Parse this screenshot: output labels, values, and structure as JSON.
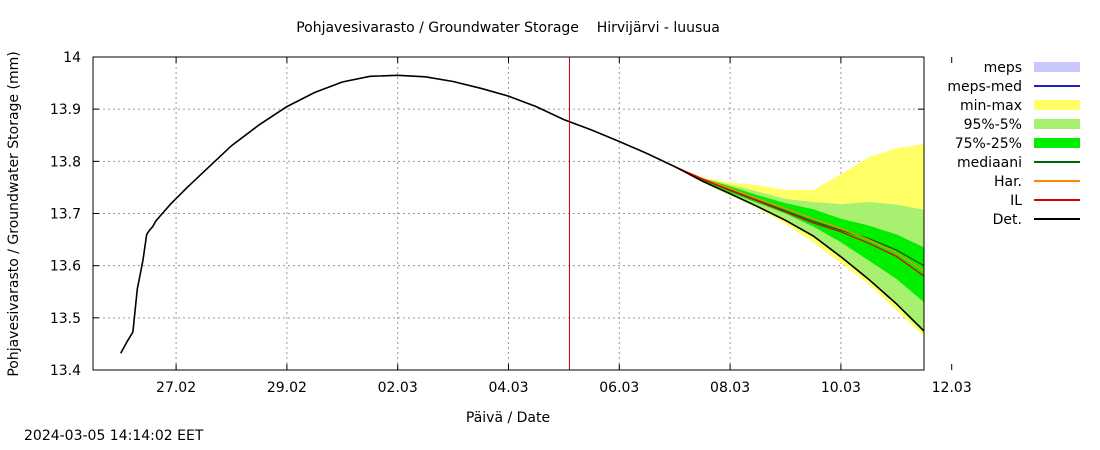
{
  "timestamp": "2024-03-05 14:14:02 EET",
  "chart_data": {
    "type": "line",
    "title": "Pohjavesivarasto / Groundwater Storage    Hirvijärvi - luusua",
    "xlabel": "Päivä / Date",
    "ylabel": "Pohjavesivarasto / Groundwater Storage (mm)",
    "x_unit": "days since 26.02 00:00",
    "xlim": [
      -0.5,
      14.5
    ],
    "ylim": [
      13.4,
      14.0
    ],
    "grid": true,
    "legend_position": "right",
    "x_ticks": [
      {
        "x": 1,
        "label": "27.02"
      },
      {
        "x": 3,
        "label": "29.02"
      },
      {
        "x": 5,
        "label": "02.03"
      },
      {
        "x": 7,
        "label": "04.03"
      },
      {
        "x": 9,
        "label": "06.03"
      },
      {
        "x": 11,
        "label": "08.03"
      },
      {
        "x": 13,
        "label": "10.03"
      },
      {
        "x": 15,
        "label": "12.03"
      }
    ],
    "y_ticks": [
      13.4,
      13.5,
      13.6,
      13.7,
      13.8,
      13.9,
      14.0
    ],
    "current_time_marker": {
      "x": 8.1,
      "color": "#c00000"
    },
    "legend": [
      {
        "label": "meps",
        "color": "#c8c8ff",
        "kind": "box"
      },
      {
        "label": "meps-med",
        "color": "#2020c0",
        "kind": "line"
      },
      {
        "label": "min-max",
        "color": "#ffff66",
        "kind": "box"
      },
      {
        "label": "95%-5%",
        "color": "#a8f070",
        "kind": "box"
      },
      {
        "label": "75%-25%",
        "color": "#00ee00",
        "kind": "box"
      },
      {
        "label": "mediaani",
        "color": "#006600",
        "kind": "line"
      },
      {
        "label": "Har.",
        "color": "#ff8800",
        "kind": "line"
      },
      {
        "label": "IL",
        "color": "#dd0000",
        "kind": "line"
      },
      {
        "label": "Det.",
        "color": "#000000",
        "kind": "line"
      }
    ],
    "observed": {
      "name": "Det.",
      "x": [
        0,
        0.12,
        0.22,
        0.3,
        0.4,
        0.47,
        0.52,
        0.58,
        0.63,
        0.75,
        0.9,
        1.2,
        1.6,
        2.0,
        2.5,
        3.0,
        3.5,
        4.0,
        4.5,
        5.0,
        5.5,
        6.0,
        6.5,
        7.0,
        7.5,
        8.0,
        8.5,
        9.0,
        9.5,
        10.0
      ],
      "y": [
        13.432,
        13.455,
        13.473,
        13.555,
        13.61,
        13.66,
        13.668,
        13.675,
        13.685,
        13.7,
        13.718,
        13.75,
        13.79,
        13.83,
        13.87,
        13.905,
        13.932,
        13.952,
        13.963,
        13.965,
        13.962,
        13.953,
        13.94,
        13.925,
        13.905,
        13.88,
        13.86,
        13.838,
        13.815,
        13.79
      ]
    },
    "forecast_x": [
      10.0,
      10.5,
      11.0,
      11.5,
      12.0,
      12.5,
      13.0,
      13.5,
      14.0,
      14.5
    ],
    "bands": {
      "min_max": {
        "upper": [
          13.79,
          13.768,
          13.76,
          13.754,
          13.745,
          13.745,
          13.775,
          13.808,
          13.825,
          13.833
        ],
        "lower": [
          13.79,
          13.76,
          13.735,
          13.71,
          13.68,
          13.645,
          13.605,
          13.565,
          13.515,
          13.465
        ]
      },
      "p95_p5": {
        "upper": [
          13.79,
          13.768,
          13.755,
          13.742,
          13.728,
          13.722,
          13.718,
          13.722,
          13.717,
          13.707
        ],
        "lower": [
          13.79,
          13.76,
          13.735,
          13.712,
          13.686,
          13.655,
          13.615,
          13.575,
          13.525,
          13.47
        ]
      },
      "p75_p25": {
        "upper": [
          13.79,
          13.768,
          13.752,
          13.735,
          13.72,
          13.708,
          13.69,
          13.677,
          13.66,
          13.635
        ],
        "lower": [
          13.79,
          13.763,
          13.74,
          13.72,
          13.7,
          13.675,
          13.645,
          13.61,
          13.575,
          13.53
        ]
      }
    },
    "series": [
      {
        "name": "mediaani",
        "color": "#006600",
        "values": [
          13.79,
          13.765,
          13.745,
          13.725,
          13.705,
          13.685,
          13.668,
          13.652,
          13.63,
          13.6
        ]
      },
      {
        "name": "Har.",
        "color": "#ff8800",
        "values": [
          13.79,
          13.767,
          13.748,
          13.728,
          13.71,
          13.69,
          13.671,
          13.65,
          13.625,
          13.59
        ]
      },
      {
        "name": "IL",
        "color": "#dd0000",
        "values": [
          13.79,
          13.766,
          13.744,
          13.724,
          13.703,
          13.682,
          13.665,
          13.643,
          13.618,
          13.58
        ]
      },
      {
        "name": "Det.",
        "color": "#000000",
        "values": [
          13.79,
          13.762,
          13.738,
          13.713,
          13.687,
          13.657,
          13.617,
          13.574,
          13.527,
          13.475
        ]
      }
    ]
  }
}
